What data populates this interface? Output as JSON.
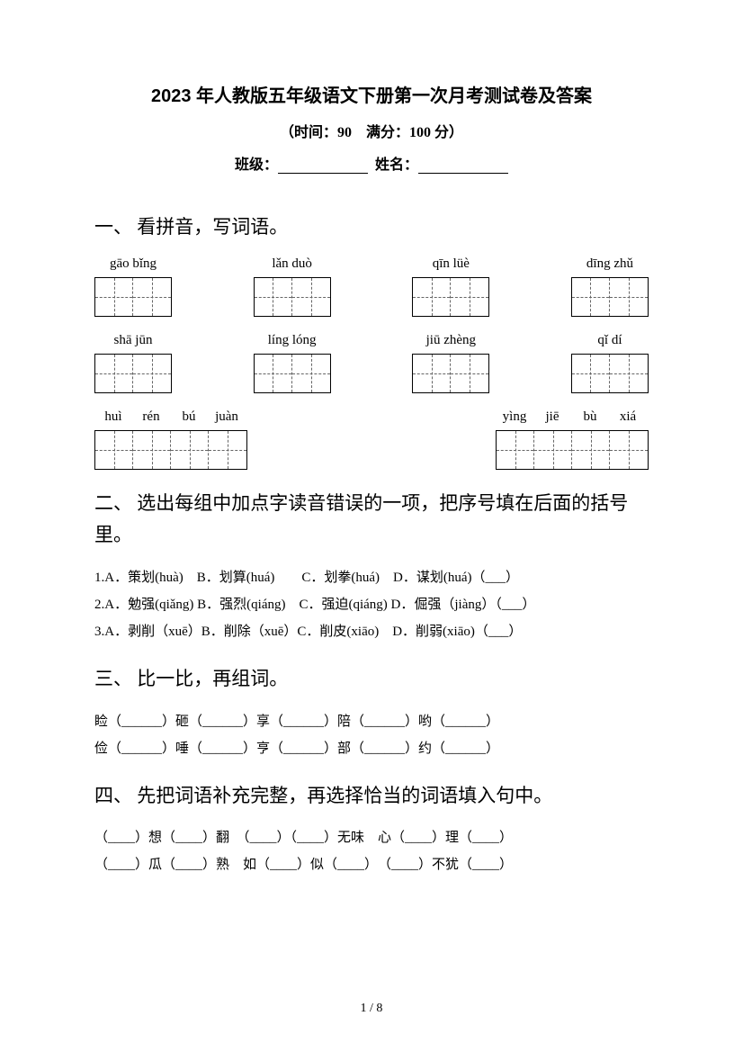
{
  "title": "2023 年人教版五年级语文下册第一次月考测试卷及答案",
  "subtitle": "（时间：90　满分：100 分）",
  "info_class": "班级：",
  "info_name": "姓名：",
  "section1": {
    "heading": "一、 看拼音，写词语。",
    "row1": [
      {
        "pinyin": "gāo bǐng",
        "cells": 2
      },
      {
        "pinyin": "lǎn duò",
        "cells": 2
      },
      {
        "pinyin": "qīn lüè",
        "cells": 2
      },
      {
        "pinyin": "dīng zhǔ",
        "cells": 2
      }
    ],
    "row2": [
      {
        "pinyin": "shā jūn",
        "cells": 2
      },
      {
        "pinyin": "líng lóng",
        "cells": 2
      },
      {
        "pinyin": "jiū zhèng",
        "cells": 2
      },
      {
        "pinyin": "qǐ dí",
        "cells": 2
      }
    ],
    "row3": [
      {
        "syllables": [
          "huì",
          "rén",
          "bú",
          "juàn"
        ],
        "cells": 4
      },
      {
        "syllables": [
          "yìng",
          "jiē",
          "bù",
          "xiá"
        ],
        "cells": 4
      }
    ]
  },
  "section2": {
    "heading": "二、 选出每组中加点字读音错误的一项，把序号填在后面的括号里。",
    "lines": [
      "1.A．策划(huà)　B．划算(huá)　　C．划拳(huá)　D．谋划(huá)（___）",
      "2.A．勉强(qiǎng) B．强烈(qiáng)　C．强迫(qiáng) D．倔强（jiàng）（___）",
      "3.A．剥削（xuē）B．削除（xuē）C．削皮(xiāo)　D．削弱(xiāo)（___）"
    ]
  },
  "section3": {
    "heading": "三、 比一比，再组词。",
    "lines": [
      "睑（______）砸（______）享（______）陪（______）哟（______）",
      "俭（______）唾（______）亨（______）部（______）约（______）"
    ]
  },
  "section4": {
    "heading": "四、 先把词语补充完整，再选择恰当的词语填入句中。",
    "lines": [
      "（____）想（____）翻　（____）（____）无味　心（____）理（____）",
      "（____）瓜（____）熟　如（____）似（____）　（____）不犹（____）"
    ]
  },
  "footer": "1 / 8"
}
